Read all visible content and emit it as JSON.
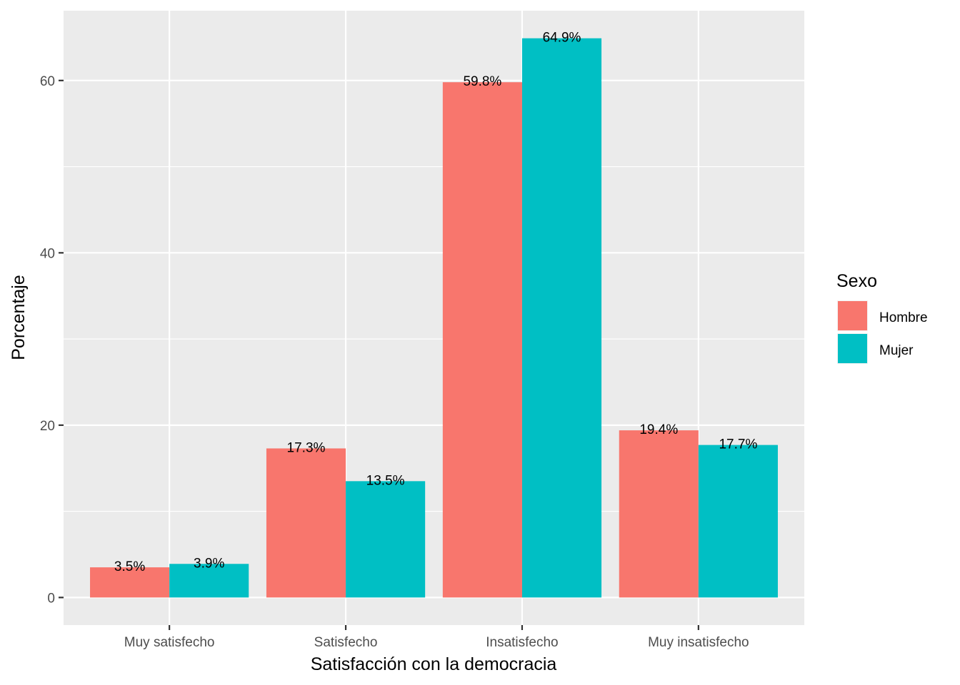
{
  "chart_data": {
    "type": "bar",
    "xlabel": "Satisfacción con la democracia",
    "ylabel": "Porcentaje",
    "categories": [
      "Muy satisfecho",
      "Satisfecho",
      "Insatisfecho",
      "Muy insatisfecho"
    ],
    "series": [
      {
        "name": "Hombre",
        "color": "#F8766D",
        "values": [
          3.5,
          17.3,
          59.8,
          19.4
        ],
        "labels": [
          "3.5%",
          "17.3%",
          "59.8%",
          "19.4%"
        ]
      },
      {
        "name": "Mujer",
        "color": "#00BFC4",
        "values": [
          3.9,
          13.5,
          64.9,
          17.7
        ],
        "labels": [
          "3.9%",
          "13.5%",
          "64.9%",
          "17.7%"
        ]
      }
    ],
    "ylim": [
      -3.2,
      68.1
    ],
    "yticks": [
      0,
      20,
      40,
      60
    ],
    "ytick_labels": [
      "0",
      "20",
      "40",
      "60"
    ],
    "grid": true,
    "panel_color": "#EBEBEB",
    "legend": {
      "title": "Sexo",
      "position": "right",
      "entries": [
        "Hombre",
        "Mujer"
      ]
    }
  }
}
